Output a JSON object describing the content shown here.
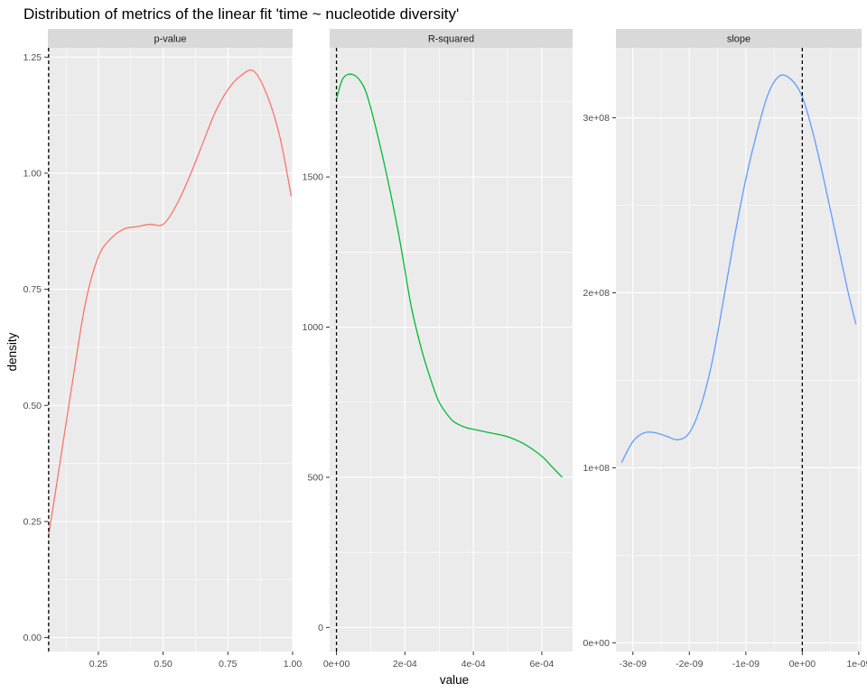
{
  "chart_data": {
    "type": "line",
    "title": "Distribution of metrics of the linear fit 'time ~ nucleotide diversity'",
    "xlabel": "value",
    "ylabel": "density",
    "legend": "none",
    "grid": true,
    "facet_scales": "free",
    "panels": [
      {
        "name": "p-value",
        "color": "#F8766D",
        "xlim": [
          0.055,
          1.0
        ],
        "ylim": [
          -0.03,
          1.27
        ],
        "x_ticks": [
          0.25,
          0.5,
          0.75,
          1.0
        ],
        "x_tick_labels": [
          "0.25",
          "0.50",
          "0.75",
          "1.00"
        ],
        "y_ticks": [
          0.0,
          0.25,
          0.5,
          0.75,
          1.0,
          1.25
        ],
        "y_tick_labels": [
          "0.00",
          "0.25",
          "0.50",
          "0.75",
          "1.00",
          "1.25"
        ],
        "vline": 0.058,
        "x": [
          0.058,
          0.1,
          0.15,
          0.2,
          0.25,
          0.3,
          0.35,
          0.4,
          0.45,
          0.5,
          0.55,
          0.6,
          0.65,
          0.7,
          0.75,
          0.8,
          0.85,
          0.9,
          0.95,
          0.995
        ],
        "y": [
          0.22,
          0.37,
          0.55,
          0.72,
          0.82,
          0.86,
          0.88,
          0.885,
          0.89,
          0.89,
          0.93,
          0.99,
          1.06,
          1.13,
          1.18,
          1.21,
          1.22,
          1.17,
          1.08,
          0.95
        ]
      },
      {
        "name": "R-squared",
        "color": "#00BA38",
        "xlim": [
          -2e-05,
          0.00069
        ],
        "ylim": [
          -80,
          1930
        ],
        "x_ticks": [
          0,
          0.0002,
          0.0004,
          0.0006
        ],
        "x_tick_labels": [
          "0e+00",
          "2e-04",
          "4e-04",
          "6e-04"
        ],
        "y_ticks": [
          0,
          500,
          1000,
          1500
        ],
        "y_tick_labels": [
          "0",
          "500",
          "1000",
          "1500"
        ],
        "vline": 0,
        "x": [
          0,
          2e-05,
          5e-05,
          8e-05,
          0.0001,
          0.00012,
          0.00015,
          0.00018,
          0.0002,
          0.00022,
          0.00025,
          0.00028,
          0.0003,
          0.00033,
          0.00035,
          0.00038,
          0.0004,
          0.00042,
          0.00045,
          0.0005,
          0.00055,
          0.0006,
          0.00063,
          0.00066
        ],
        "y": [
          1760,
          1830,
          1840,
          1800,
          1730,
          1640,
          1490,
          1320,
          1190,
          1060,
          920,
          810,
          750,
          700,
          680,
          665,
          660,
          655,
          648,
          635,
          610,
          570,
          535,
          500
        ]
      },
      {
        "name": "slope",
        "color": "#619CFF",
        "xlim": [
          -3.3e-09,
          1.05e-09
        ],
        "ylim": [
          -5000000,
          340000000
        ],
        "x_ticks": [
          -3e-09,
          -2e-09,
          -1e-09,
          0,
          1e-09
        ],
        "x_tick_labels": [
          "-3e-09",
          "-2e-09",
          "-1e-09",
          "0e+00",
          "1e-09"
        ],
        "y_ticks": [
          0,
          100000000,
          200000000,
          300000000
        ],
        "y_tick_labels": [
          "0e+00",
          "1e+08",
          "2e+08",
          "3e+08"
        ],
        "vline": 0,
        "x": [
          -3.2e-09,
          -3e-09,
          -2.8e-09,
          -2.6e-09,
          -2.4e-09,
          -2.2e-09,
          -2e-09,
          -1.8e-09,
          -1.6e-09,
          -1.4e-09,
          -1.2e-09,
          -1e-09,
          -8e-10,
          -6e-10,
          -4e-10,
          -2e-10,
          0,
          2e-10,
          4e-10,
          6e-10,
          8e-10,
          9.5e-10
        ],
        "y": [
          103000000,
          115000000,
          120000000,
          120000000,
          118000000,
          116000000,
          120000000,
          135000000,
          160000000,
          195000000,
          232000000,
          265000000,
          292000000,
          314000000,
          324000000,
          322000000,
          312000000,
          290000000,
          262000000,
          232000000,
          202000000,
          182000000
        ]
      }
    ]
  }
}
